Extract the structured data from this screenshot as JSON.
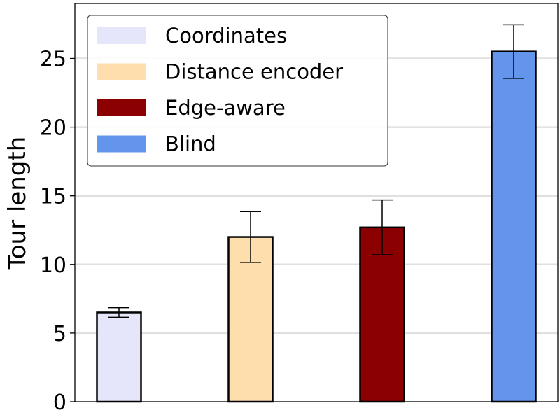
{
  "chart_data": {
    "type": "bar",
    "categories": [
      "Coordinates",
      "Distance encoder",
      "Edge-aware",
      "Blind"
    ],
    "values": [
      6.5,
      12.0,
      12.7,
      25.5
    ],
    "errors": [
      0.35,
      1.85,
      2.0,
      1.95
    ],
    "colors": [
      "#e6e6fa",
      "#ffdead",
      "#8b0000",
      "#6495ed"
    ],
    "xlabel": "",
    "ylabel": "Tour length",
    "ylim": [
      0,
      29
    ],
    "yticks": [
      0,
      5,
      10,
      15,
      20,
      25
    ],
    "grid": "horizontal",
    "legend_position": "top-left"
  }
}
